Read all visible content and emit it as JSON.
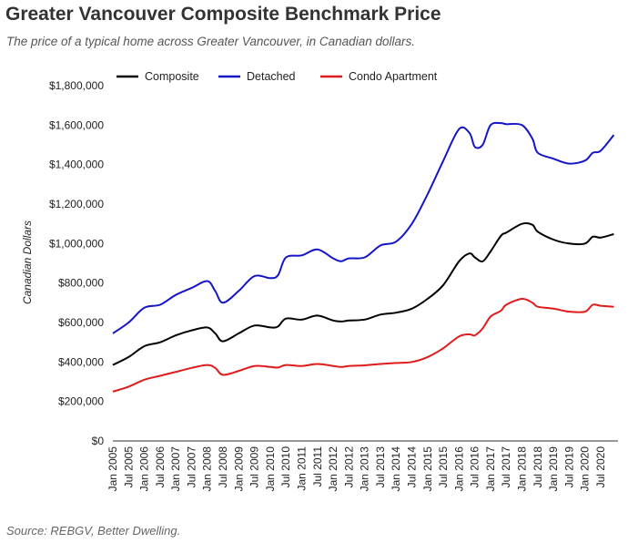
{
  "title": "Greater Vancouver Composite Benchmark Price",
  "subtitle": "The price of a typical home across Greater Vancouver, in Canadian dollars.",
  "source": "Source: REBGV, Better Dwelling.",
  "chart_data": {
    "type": "line",
    "title": "Greater Vancouver Composite Benchmark Price",
    "xlabel": "",
    "ylabel": "Canadian Dollars",
    "ylim": [
      0,
      1800000
    ],
    "yticks": [
      0,
      200000,
      400000,
      600000,
      800000,
      1000000,
      1200000,
      1400000,
      1600000,
      1800000
    ],
    "ytick_labels": [
      "$0",
      "$200,000",
      "$400,000",
      "$600,000",
      "$800,000",
      "$1,000,000",
      "$1,200,000",
      "$1,400,000",
      "$1,600,000",
      "$1,800,000"
    ],
    "xtick_labels": [
      "Jan 2005",
      "Jul 2005",
      "Jan 2006",
      "Jul 2006",
      "Jan 2007",
      "Jul 2007",
      "Jan 2008",
      "Jul 2008",
      "Jan 2009",
      "Jul 2009",
      "Jan 2010",
      "Jul 2010",
      "Jan 2011",
      "Jul 2011",
      "Jan 2012",
      "Jul 2012",
      "Jan 2013",
      "Jul 2013",
      "Jan 2014",
      "Jul 2014",
      "Jan 2015",
      "Jul 2015",
      "Jan 2016",
      "Jul 2016",
      "Jan 2017",
      "Jul 2017",
      "Jan 2018",
      "Jul 2018",
      "Jan 2019",
      "Jul 2019",
      "Jan 2020",
      "Jul 2020"
    ],
    "x": [
      "2005-01",
      "2005-07",
      "2006-01",
      "2006-07",
      "2007-01",
      "2007-07",
      "2008-01",
      "2008-04",
      "2008-07",
      "2009-01",
      "2009-07",
      "2010-01",
      "2010-04",
      "2010-07",
      "2011-01",
      "2011-07",
      "2012-01",
      "2012-04",
      "2012-07",
      "2013-01",
      "2013-07",
      "2014-01",
      "2014-07",
      "2015-01",
      "2015-07",
      "2016-01",
      "2016-05",
      "2016-07",
      "2016-10",
      "2017-01",
      "2017-05",
      "2017-07",
      "2018-01",
      "2018-05",
      "2018-07",
      "2019-01",
      "2019-07",
      "2020-01",
      "2020-04",
      "2020-07",
      "2020-12"
    ],
    "legend": {
      "position": "top"
    },
    "grid": false,
    "series": [
      {
        "name": "Composite",
        "color": "#000000",
        "values": [
          385000,
          425000,
          480000,
          500000,
          535000,
          560000,
          575000,
          545000,
          505000,
          545000,
          585000,
          575000,
          580000,
          620000,
          615000,
          635000,
          610000,
          605000,
          610000,
          615000,
          640000,
          650000,
          670000,
          720000,
          790000,
          910000,
          950000,
          930000,
          910000,
          960000,
          1040000,
          1055000,
          1100000,
          1095000,
          1060000,
          1020000,
          1000000,
          1000000,
          1035000,
          1030000,
          1048000
        ]
      },
      {
        "name": "Detached",
        "color": "#1515c8",
        "values": [
          545000,
          600000,
          675000,
          690000,
          740000,
          775000,
          810000,
          760000,
          700000,
          760000,
          835000,
          825000,
          840000,
          930000,
          940000,
          970000,
          925000,
          910000,
          925000,
          930000,
          990000,
          1010000,
          1100000,
          1250000,
          1420000,
          1580000,
          1560000,
          1490000,
          1500000,
          1600000,
          1610000,
          1605000,
          1600000,
          1530000,
          1460000,
          1430000,
          1405000,
          1420000,
          1460000,
          1470000,
          1550000
        ]
      },
      {
        "name": "Condo Apartment",
        "color": "#e01b1b",
        "values": [
          250000,
          275000,
          310000,
          330000,
          350000,
          370000,
          385000,
          370000,
          335000,
          355000,
          380000,
          375000,
          372000,
          385000,
          380000,
          390000,
          380000,
          375000,
          380000,
          383000,
          390000,
          395000,
          400000,
          425000,
          470000,
          530000,
          540000,
          535000,
          570000,
          630000,
          660000,
          690000,
          720000,
          700000,
          680000,
          670000,
          655000,
          655000,
          690000,
          685000,
          680000
        ]
      }
    ]
  }
}
